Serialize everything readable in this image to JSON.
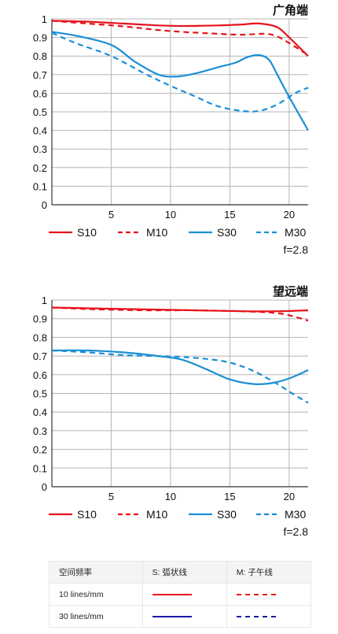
{
  "charts": {
    "chart_data": [
      {
        "type": "line",
        "title": "广角端",
        "x_ticks": [
          5,
          10,
          15,
          20
        ],
        "y_ticks": [
          "0",
          "0.1",
          "0.2",
          "0.3",
          "0.4",
          "0.5",
          "0.6",
          "0.7",
          "0.8",
          "0.9",
          "1"
        ],
        "xlim": [
          0,
          21.6
        ],
        "ylim": [
          0,
          1
        ],
        "grid": true,
        "aperture": "f=2.8",
        "series": [
          {
            "name": "S10",
            "color": "#e8141c",
            "dashed": false,
            "x": [
              0,
              3,
              6,
              9,
              11,
              14,
              16,
              17.5,
              19,
              20,
              21.6
            ],
            "y": [
              0.99,
              0.985,
              0.975,
              0.965,
              0.962,
              0.965,
              0.97,
              0.975,
              0.955,
              0.9,
              0.8
            ]
          },
          {
            "name": "M10",
            "color": "#e8141c",
            "dashed": true,
            "x": [
              0,
              3,
              6,
              9,
              11,
              14,
              16,
              18,
              19,
              20,
              21.6
            ],
            "y": [
              0.99,
              0.975,
              0.96,
              0.94,
              0.93,
              0.92,
              0.915,
              0.92,
              0.905,
              0.87,
              0.805
            ]
          },
          {
            "name": "S30",
            "color": "#1b8fd6",
            "dashed": false,
            "x": [
              0,
              2,
              5,
              7,
              9,
              10.5,
              12,
              14,
              15.5,
              16.5,
              17.5,
              18.3,
              19,
              20,
              21.6
            ],
            "y": [
              0.93,
              0.91,
              0.86,
              0.77,
              0.7,
              0.69,
              0.705,
              0.74,
              0.765,
              0.795,
              0.805,
              0.78,
              0.7,
              0.58,
              0.4
            ]
          },
          {
            "name": "M30",
            "color": "#1b8fd6",
            "dashed": true,
            "x": [
              0,
              2,
              5,
              8,
              10,
              12,
              14,
              16,
              17.5,
              19,
              20.5,
              21.6
            ],
            "y": [
              0.925,
              0.87,
              0.8,
              0.7,
              0.64,
              0.585,
              0.53,
              0.505,
              0.505,
              0.54,
              0.6,
              0.63
            ]
          }
        ]
      },
      {
        "type": "line",
        "title": "望远端",
        "x_ticks": [
          5,
          10,
          15,
          20
        ],
        "y_ticks": [
          "0",
          "0.1",
          "0.2",
          "0.3",
          "0.4",
          "0.5",
          "0.6",
          "0.7",
          "0.8",
          "0.9",
          "1"
        ],
        "xlim": [
          0,
          21.6
        ],
        "ylim": [
          0,
          1
        ],
        "grid": true,
        "aperture": "f=2.8",
        "series": [
          {
            "name": "S10",
            "color": "#e8141c",
            "dashed": false,
            "x": [
              0,
              4,
              8,
              12,
              16,
              19,
              21.6
            ],
            "y": [
              0.96,
              0.955,
              0.95,
              0.945,
              0.94,
              0.94,
              0.945
            ]
          },
          {
            "name": "M10",
            "color": "#e8141c",
            "dashed": true,
            "x": [
              0,
              4,
              8,
              12,
              16,
              19,
              20.5,
              21.6
            ],
            "y": [
              0.96,
              0.95,
              0.945,
              0.945,
              0.94,
              0.93,
              0.91,
              0.89
            ]
          },
          {
            "name": "S30",
            "color": "#1b8fd6",
            "dashed": false,
            "x": [
              0,
              3,
              6,
              9,
              11,
              13,
              15,
              17,
              18.5,
              20,
              21.6
            ],
            "y": [
              0.73,
              0.73,
              0.72,
              0.7,
              0.68,
              0.63,
              0.575,
              0.55,
              0.555,
              0.58,
              0.625
            ]
          },
          {
            "name": "M30",
            "color": "#1b8fd6",
            "dashed": true,
            "x": [
              0,
              3,
              6,
              9,
              11,
              13,
              15,
              17,
              19,
              20.5,
              21.6
            ],
            "y": [
              0.73,
              0.72,
              0.705,
              0.7,
              0.695,
              0.685,
              0.665,
              0.62,
              0.55,
              0.49,
              0.45
            ]
          }
        ]
      }
    ]
  },
  "table": {
    "header": [
      "空间频率",
      "S: 弧状线",
      "M: 子午线"
    ],
    "rows": [
      {
        "label": "10 lines/mm",
        "color": "#e8141c"
      },
      {
        "label": "30 lines/mm",
        "color": "#1a1aa8"
      }
    ]
  }
}
